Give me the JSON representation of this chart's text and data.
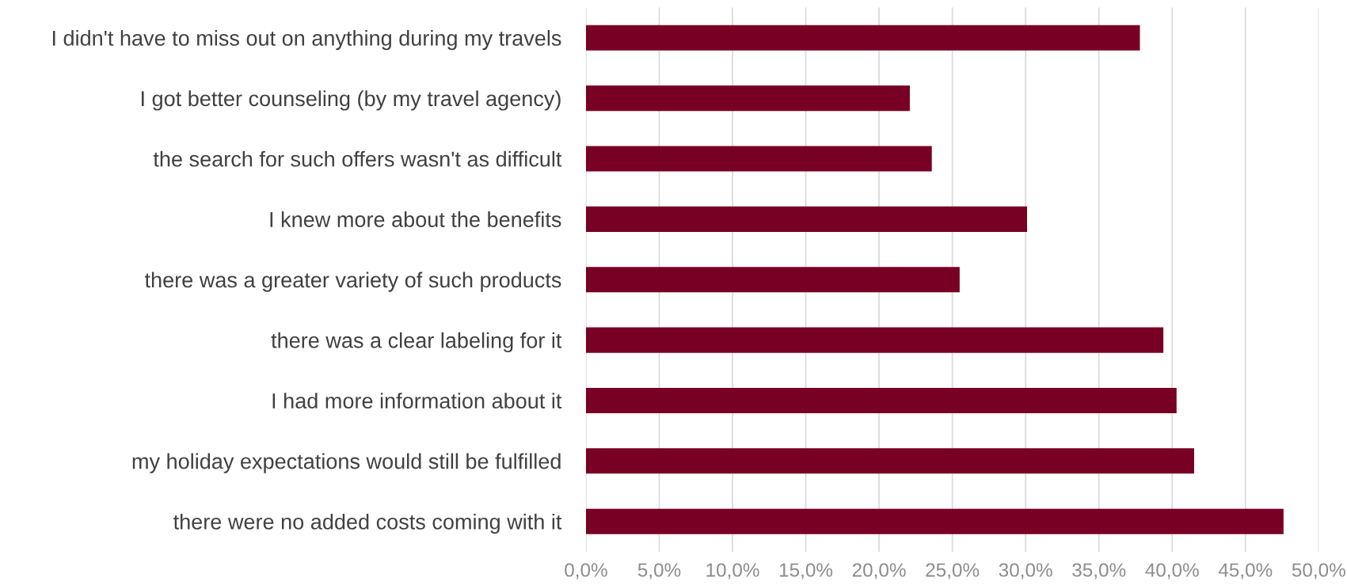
{
  "chart_data": {
    "type": "bar",
    "orientation": "horizontal",
    "categories": [
      "I didn't have to miss out on anything during my travels",
      "I got better counseling (by my travel agency)",
      "the search for such offers wasn't as difficult",
      "I knew more about the benefits",
      "there was a greater variety of such products",
      "there was a clear labeling for it",
      "I had more information about it",
      "my holiday expectations would still be fulfilled",
      "there were no added costs coming with it"
    ],
    "values": [
      37.8,
      22.1,
      23.6,
      30.1,
      25.5,
      39.4,
      40.3,
      41.5,
      47.6
    ],
    "color": "#780024",
    "xlim": [
      0,
      50
    ],
    "xticks": [
      {
        "value": 0,
        "label": "0,0%"
      },
      {
        "value": 5,
        "label": "5,0%"
      },
      {
        "value": 10,
        "label": "10,0%"
      },
      {
        "value": 15,
        "label": "15,0%"
      },
      {
        "value": 20,
        "label": "20,0%"
      },
      {
        "value": 25,
        "label": "25,0%"
      },
      {
        "value": 30,
        "label": "30,0%"
      },
      {
        "value": 35,
        "label": "35,0%"
      },
      {
        "value": 40,
        "label": "40,0%"
      },
      {
        "value": 45,
        "label": "45,0%"
      },
      {
        "value": 50,
        "label": "50,0%"
      }
    ],
    "grid": "x"
  }
}
